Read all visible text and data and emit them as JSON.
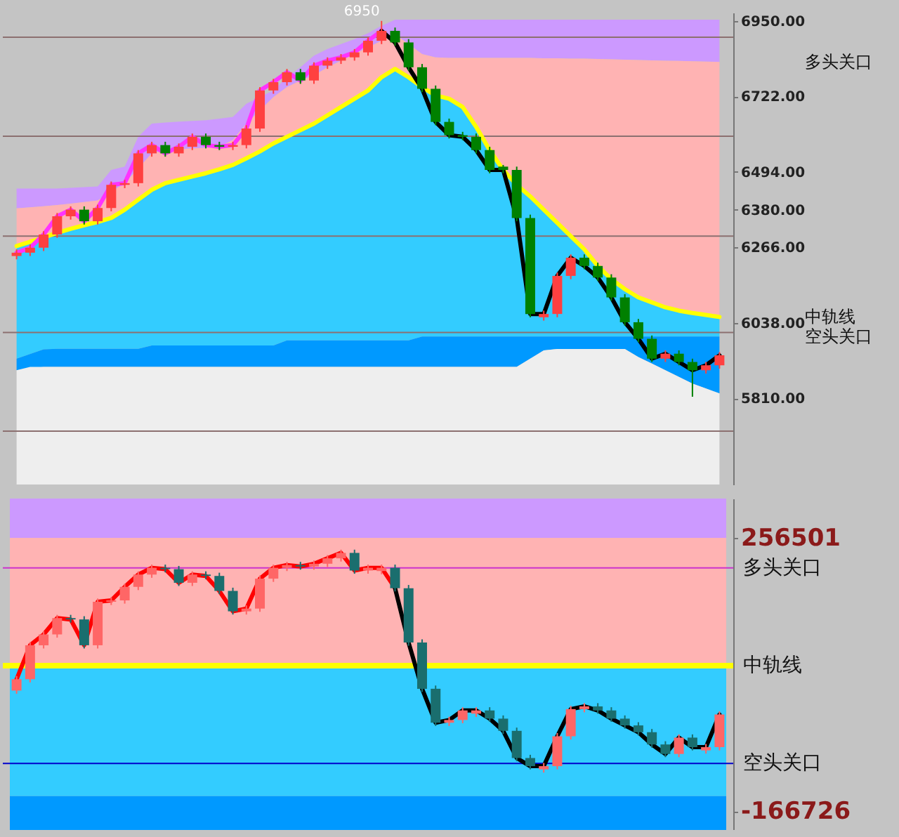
{
  "chart_data": [
    {
      "type": "candlestick",
      "categories": [
        null,
        null,
        null,
        null,
        null,
        null,
        null,
        null,
        null,
        null,
        null,
        null,
        null,
        null,
        null,
        null,
        null,
        null,
        null,
        null,
        null,
        null,
        null,
        null,
        null,
        null,
        null,
        null,
        null,
        null,
        null,
        null,
        null,
        null,
        null,
        null,
        null,
        null,
        null,
        null,
        null,
        null,
        null,
        null,
        null,
        null,
        null,
        null,
        null,
        null,
        null,
        null,
        null
      ],
      "ohlc": [
        [
          6240,
          6260,
          6230,
          6250
        ],
        [
          6250,
          6275,
          6240,
          6265
        ],
        [
          6265,
          6315,
          6255,
          6305
        ],
        [
          6305,
          6370,
          6295,
          6360
        ],
        [
          6360,
          6390,
          6350,
          6380
        ],
        [
          6380,
          6390,
          6335,
          6345
        ],
        [
          6345,
          6395,
          6335,
          6385
        ],
        [
          6385,
          6465,
          6375,
          6455
        ],
        [
          6455,
          6470,
          6445,
          6460
        ],
        [
          6460,
          6560,
          6450,
          6550
        ],
        [
          6550,
          6585,
          6540,
          6575
        ],
        [
          6575,
          6585,
          6540,
          6550
        ],
        [
          6550,
          6580,
          6540,
          6570
        ],
        [
          6570,
          6610,
          6560,
          6600
        ],
        [
          6600,
          6610,
          6565,
          6575
        ],
        [
          6575,
          6585,
          6560,
          6570
        ],
        [
          6570,
          6585,
          6560,
          6575
        ],
        [
          6575,
          6635,
          6565,
          6625
        ],
        [
          6625,
          6750,
          6615,
          6740
        ],
        [
          6740,
          6775,
          6730,
          6765
        ],
        [
          6765,
          6805,
          6755,
          6795
        ],
        [
          6795,
          6805,
          6760,
          6770
        ],
        [
          6770,
          6825,
          6760,
          6815
        ],
        [
          6815,
          6840,
          6805,
          6830
        ],
        [
          6830,
          6850,
          6820,
          6840
        ],
        [
          6840,
          6865,
          6830,
          6855
        ],
        [
          6855,
          6900,
          6845,
          6890
        ],
        [
          6890,
          6950,
          6880,
          6920
        ],
        [
          6920,
          6930,
          6875,
          6885
        ],
        [
          6885,
          6895,
          6800,
          6810
        ],
        [
          6810,
          6820,
          6735,
          6745
        ],
        [
          6745,
          6755,
          6635,
          6645
        ],
        [
          6645,
          6655,
          6595,
          6605
        ],
        [
          6605,
          6615,
          6590,
          6600
        ],
        [
          6600,
          6610,
          6550,
          6560
        ],
        [
          6560,
          6570,
          6490,
          6500
        ],
        [
          6510,
          6515,
          6490,
          6500
        ],
        [
          6500,
          6510,
          6345,
          6355
        ],
        [
          6355,
          6365,
          6055,
          6065
        ],
        [
          6055,
          6075,
          6045,
          6065
        ],
        [
          6065,
          6190,
          6055,
          6180
        ],
        [
          6180,
          6245,
          6170,
          6235
        ],
        [
          6235,
          6245,
          6200,
          6210
        ],
        [
          6210,
          6220,
          6165,
          6175
        ],
        [
          6175,
          6185,
          6105,
          6115
        ],
        [
          6115,
          6125,
          6030,
          6040
        ],
        [
          6040,
          6050,
          5980,
          5990
        ],
        [
          5990,
          6000,
          5920,
          5930
        ],
        [
          5930,
          5955,
          5920,
          5945
        ],
        [
          5945,
          5955,
          5910,
          5920
        ],
        [
          5920,
          5930,
          5815,
          5895
        ],
        [
          5895,
          5920,
          5885,
          5910
        ],
        [
          5910,
          5950,
          5900,
          5940
        ]
      ],
      "colors": [
        "#ff4040",
        "#ff4040",
        "#ff4040",
        "#ff4040",
        "#ff4040",
        "#008000",
        "#ff4040",
        "#ff4040",
        "#ff4040",
        "#ff4040",
        "#ff4040",
        "#008000",
        "#ff4040",
        "#ff4040",
        "#008000",
        "#008000",
        "#ff4040",
        "#ff4040",
        "#ff4040",
        "#ff4040",
        "#ff4040",
        "#008000",
        "#ff4040",
        "#ff4040",
        "#ff4040",
        "#ff4040",
        "#ff4040",
        "#ff4040",
        "#008000",
        "#008000",
        "#008000",
        "#008000",
        "#008000",
        "#008000",
        "#008000",
        "#008000",
        "#008000",
        "#008000",
        "#008000",
        "#ff4040",
        "#ff4040",
        "#ff4040",
        "#008000",
        "#008000",
        "#008000",
        "#008000",
        "#008000",
        "#008000",
        "#ff4040",
        "#008000",
        "#008000",
        "#ff4040",
        "#ff4040"
      ],
      "value_labels": [
        null,
        null,
        null,
        null,
        null,
        null,
        null,
        null,
        null,
        null,
        null,
        null,
        null,
        null,
        null,
        null,
        null,
        null,
        null,
        null,
        null,
        null,
        null,
        null,
        null,
        null,
        null,
        "6950",
        null,
        null,
        null,
        null,
        null,
        null,
        null,
        null,
        null,
        null,
        null,
        null,
        null,
        null,
        null,
        null,
        null,
        null,
        null,
        null,
        null,
        null,
        null,
        null,
        null
      ],
      "series": [
        {
          "type": "area",
          "color": "#cc99ff",
          "values": [
            6444,
            6444,
            6444,
            6444,
            6446,
            6448,
            6450,
            6500,
            6510,
            6600,
            6640,
            6643,
            6646,
            6648,
            6650,
            6655,
            6660,
            6700,
            null,
            6740,
            6780,
            6810,
            6845,
            6865,
            6880,
            6895,
            6913,
            6935,
            6954,
            6954,
            6954,
            6954,
            6954,
            6954,
            6954,
            6954,
            6954,
            6954,
            6954,
            6954,
            6954,
            6954,
            6954,
            6954,
            6954,
            6954,
            6954,
            6954,
            6954,
            6954,
            6954,
            6954,
            6954
          ]
        },
        {
          "type": "area",
          "name": "多头关口",
          "color": "#ffb3b3",
          "values": [
            6384,
            6387,
            6390,
            6394,
            6398,
            6403,
            6408,
            null,
            6460,
            null,
            6550,
            6560,
            6562,
            6565,
            6567,
            6570,
            6590,
            6640,
            null,
            6720,
            6750,
            6770,
            6785,
            6810,
            6830,
            6850,
            6870,
            6890,
            6910,
            null,
            6850,
            6840,
            6838,
            6838,
            6838,
            6838,
            6838,
            6838,
            6838,
            6837,
            6837,
            6836,
            6836,
            6835,
            6834,
            6833,
            6832,
            6831,
            6830,
            6829,
            6828,
            6827,
            6826
          ]
        },
        {
          "type": "area",
          "color": "#33ccff",
          "values": [
            6270,
            6283,
            6296,
            6310,
            6322,
            6333,
            6343,
            6355,
            6380,
            6410,
            6440,
            6460,
            6470,
            6480,
            6490,
            6502,
            6515,
            6535,
            6556,
            6580,
            6600,
            6620,
            6640,
            6665,
            6690,
            6715,
            6740,
            6780,
            6805,
            6780,
            6750,
            null,
            6715,
            6690,
            6630,
            6560,
            6500,
            null,
            6420,
            6380,
            6340,
            6300,
            6260,
            6210,
            6170,
            6140,
            6115,
            6100,
            6085,
            6075,
            6068,
            6062,
            6056
          ]
        },
        {
          "type": "area",
          "name": "空头关口",
          "color": "#0099ff",
          "values": [
            5930,
            null,
            5958,
            5960,
            5960,
            5960,
            5960,
            5960,
            5960,
            5960,
            5970,
            5970,
            5970,
            5970,
            5970,
            5970,
            5970,
            5970,
            5970,
            5970,
            5985,
            5985,
            5985,
            5985,
            5985,
            5985,
            5985,
            5985,
            5985,
            5985,
            5997,
            5997,
            5997,
            5997,
            5997,
            5997,
            5997,
            5997,
            5997,
            5997,
            5997,
            5997,
            5997,
            5997,
            5997,
            5997,
            5997,
            5997,
            5997,
            5997,
            5997,
            5997,
            5997
          ]
        },
        {
          "type": "area",
          "color": "#eeeeee",
          "values": [
            5895,
            5905,
            5905,
            5905,
            5905,
            5905,
            5905,
            5905,
            5905,
            5905,
            5905,
            5905,
            5905,
            5905,
            5905,
            5905,
            5905,
            5905,
            5905,
            5905,
            5905,
            5905,
            5905,
            5905,
            5905,
            5905,
            5905,
            5905,
            5905,
            5905,
            5905,
            5905,
            5905,
            5905,
            5905,
            5905,
            5905,
            5905,
            5930,
            5955,
            5959,
            5959,
            5959,
            5959,
            5959,
            5959,
            5935,
            5915,
            5895,
            5875,
            5855,
            5840,
            5825
          ]
        },
        {
          "type": "line",
          "name": "中轨线",
          "color": "#ffff00",
          "values": [
            6270,
            6283,
            6296,
            6310,
            6322,
            6333,
            6343,
            6355,
            6380,
            6410,
            6440,
            6460,
            6470,
            6480,
            6490,
            6502,
            6515,
            6535,
            6556,
            6580,
            6600,
            6620,
            6640,
            6665,
            6690,
            6715,
            6740,
            6780,
            6805,
            6780,
            6750,
            6725,
            6715,
            6690,
            6630,
            6560,
            6500,
            6455,
            6420,
            6380,
            6340,
            6300,
            6260,
            6210,
            6170,
            6140,
            6115,
            6100,
            6085,
            6075,
            6068,
            6062,
            6056
          ]
        },
        {
          "type": "line",
          "color": "#ff33ff",
          "values": [
            6250,
            6265,
            6305,
            6360,
            6380,
            6345,
            6385,
            6455,
            6460,
            6550,
            6575,
            6550,
            6570,
            6600,
            6575,
            6570,
            6575,
            6625,
            6740,
            6765,
            6795,
            6770,
            6815,
            6830,
            6840,
            6855,
            6890,
            6920,
            null,
            null,
            null,
            null,
            null,
            null,
            null,
            null,
            null,
            null,
            null,
            null,
            null,
            null,
            null,
            null,
            null,
            null,
            null,
            null,
            null,
            null,
            null,
            null,
            null
          ]
        },
        {
          "type": "line",
          "color": "#000000",
          "values": [
            null,
            null,
            null,
            null,
            null,
            null,
            null,
            null,
            null,
            null,
            null,
            null,
            null,
            null,
            null,
            null,
            null,
            null,
            null,
            null,
            null,
            null,
            null,
            null,
            null,
            null,
            null,
            6920,
            6885,
            6810,
            6745,
            6645,
            6605,
            6600,
            6560,
            6500,
            6500,
            6355,
            6065,
            6065,
            6180,
            6235,
            6210,
            6175,
            6115,
            6040,
            5990,
            5930,
            5945,
            5920,
            5895,
            5910,
            5940
          ]
        }
      ],
      "ylim": [
        5550,
        6975
      ],
      "yticks": [
        {
          "value": 6950,
          "label": "6950.00"
        },
        {
          "value": 6722,
          "label": "6722.00"
        },
        {
          "value": 6494,
          "label": "6494.00"
        },
        {
          "value": 6380,
          "label": "6380.00"
        },
        {
          "value": 6266,
          "label": "6266.00"
        },
        {
          "value": 6038,
          "label": "6038.00"
        },
        {
          "value": 5810,
          "label": "5810.00"
        }
      ],
      "tick_labels": "y",
      "ref_lines": [
        {
          "axis": "y",
          "value": 6901,
          "color": "#8c7070"
        },
        {
          "axis": "y",
          "value": 6602,
          "color": "#8c7070"
        },
        {
          "axis": "y",
          "value": 6300,
          "color": "#8c7070"
        },
        {
          "axis": "y",
          "value": 6009,
          "color": "#8c7070"
        },
        {
          "axis": "y",
          "value": 5711,
          "color": "#8c7070"
        }
      ]
    },
    {
      "type": "candlestick",
      "categories": [
        null,
        null,
        null,
        null,
        null,
        null,
        null,
        null,
        null,
        null,
        null,
        null,
        null,
        null,
        null,
        null,
        null,
        null,
        null,
        null,
        null,
        null,
        null,
        null,
        null,
        null,
        null,
        null,
        null,
        null,
        null,
        null,
        null,
        null,
        null,
        null,
        null,
        null,
        null,
        null,
        null,
        null,
        null,
        null,
        null,
        null,
        null,
        null,
        null,
        null,
        null,
        null,
        null
      ],
      "ohlc": [
        [
          20000,
          42600,
          15000,
          37600
        ],
        [
          37600,
          95200,
          32600,
          90200
        ],
        [
          90200,
          112000,
          85200,
          107000
        ],
        [
          107000,
          137300,
          102000,
          132300
        ],
        [
          132300,
          137300,
          125200,
          130200
        ],
        [
          130200,
          135200,
          85200,
          90200
        ],
        [
          90200,
          162600,
          85200,
          157600
        ],
        [
          157600,
          164700,
          152600,
          159700
        ],
        [
          159700,
          185700,
          154700,
          180700
        ],
        [
          180700,
          204700,
          175700,
          199700
        ],
        [
          199700,
          215200,
          194700,
          210200
        ],
        [
          210200,
          215200,
          203100,
          208100
        ],
        [
          208100,
          213100,
          182000,
          187000
        ],
        [
          187000,
          204700,
          182000,
          199700
        ],
        [
          199700,
          204700,
          192600,
          197600
        ],
        [
          197600,
          202600,
          169400,
          174400
        ],
        [
          174400,
          179400,
          137800,
          142800
        ],
        [
          142800,
          152000,
          137800,
          147000
        ],
        [
          147000,
          198400,
          142000,
          193400
        ],
        [
          193400,
          215200,
          188400,
          210200
        ],
        [
          210200,
          219400,
          205200,
          214400
        ],
        [
          214400,
          219400,
          207300,
          212300
        ],
        [
          212300,
          221500,
          207300,
          216500
        ],
        [
          216500,
          229900,
          211500,
          224900
        ],
        [
          224900,
          238300,
          219900,
          233300
        ],
        [
          233300,
          238300,
          201000,
          206000
        ],
        [
          206000,
          215200,
          201000,
          210200
        ],
        [
          205200,
          215200,
          200200,
          210200
        ],
        [
          210200,
          215200,
          173600,
          178600
        ],
        [
          178600,
          183600,
          89400,
          94400
        ],
        [
          94400,
          99400,
          17800,
          22800
        ],
        [
          22800,
          27800,
          -34800,
          -29800
        ],
        [
          -29800,
          -20600,
          -34800,
          -25600
        ],
        [
          -25600,
          -5800,
          -30600,
          -10800
        ],
        [
          -15800,
          -5800,
          -20800,
          -10800
        ],
        [
          -10800,
          -5800,
          -28500,
          -23500
        ],
        [
          -23500,
          -18500,
          -47400,
          -42400
        ],
        [
          -42400,
          -37400,
          -89500,
          -84500
        ],
        [
          -84500,
          -79500,
          -102100,
          -97100
        ],
        [
          -102100,
          -92100,
          -107100,
          -97100
        ],
        [
          -97100,
          -45800,
          -102100,
          -50800
        ],
        [
          -50800,
          -3700,
          -55800,
          -8700
        ],
        [
          -8700,
          500,
          -13700,
          -4500
        ],
        [
          -4500,
          500,
          -15800,
          -10800
        ],
        [
          -10800,
          -5800,
          -28500,
          -23500
        ],
        [
          -23500,
          -18500,
          -39000,
          -34000
        ],
        [
          -34000,
          -29000,
          -49500,
          -44500
        ],
        [
          -44500,
          -39500,
          -68500,
          -63500
        ],
        [
          -63500,
          -58500,
          -83200,
          -78200
        ],
        [
          -78200,
          -47900,
          -83200,
          -52900
        ],
        [
          -52900,
          -47900,
          -72700,
          -67700
        ],
        [
          -72700,
          -62700,
          -77700,
          -67700
        ],
        [
          -67700,
          -12100,
          -72700,
          -17100
        ]
      ],
      "colors": [
        "#ff6666",
        "#ff6666",
        "#ff6666",
        "#ff6666",
        "#1a6e6e",
        "#1a6e6e",
        "#ff6666",
        "#ff6666",
        "#ff6666",
        "#ff6666",
        "#ff6666",
        "#1a6e6e",
        "#1a6e6e",
        "#ff6666",
        "#1a6e6e",
        "#1a6e6e",
        "#1a6e6e",
        "#ff6666",
        "#ff6666",
        "#ff6666",
        "#ff6666",
        "#1a6e6e",
        "#ff6666",
        "#ff6666",
        "#ff6666",
        "#1a6e6e",
        "#ff6666",
        "#ff6666",
        "#1a6e6e",
        "#1a6e6e",
        "#1a6e6e",
        "#1a6e6e",
        "#ff6666",
        "#ff6666",
        "#ff6666",
        "#1a6e6e",
        "#1a6e6e",
        "#1a6e6e",
        "#1a6e6e",
        "#ff6666",
        "#ff6666",
        "#ff6666",
        "#ff6666",
        "#1a6e6e",
        "#1a6e6e",
        "#1a6e6e",
        "#1a6e6e",
        "#1a6e6e",
        "#1a6e6e",
        "#ff6666",
        "#1a6e6e",
        "#ff6666",
        "#ff6666"
      ],
      "series": [
        {
          "type": "line",
          "color": "#ff0000",
          "values": [
            37600,
            90200,
            107000,
            132300,
            130200,
            90200,
            157600,
            159700,
            180700,
            199700,
            210200,
            208100,
            187000,
            199700,
            197600,
            174400,
            142800,
            147000,
            193400,
            210200,
            214400,
            212300,
            216500,
            224900,
            233300,
            206000,
            210200,
            210200,
            178600,
            null,
            null,
            null,
            null,
            null,
            null,
            null,
            null,
            null,
            null,
            null,
            null,
            null,
            null,
            null,
            null,
            null,
            null,
            null,
            null,
            null,
            null,
            null,
            null
          ]
        },
        {
          "type": "line",
          "color": "#000000",
          "values": [
            null,
            null,
            null,
            null,
            null,
            null,
            null,
            null,
            null,
            null,
            null,
            null,
            null,
            null,
            null,
            null,
            null,
            null,
            null,
            null,
            null,
            null,
            null,
            null,
            null,
            null,
            null,
            null,
            178600,
            94400,
            22800,
            -29800,
            -25600,
            -10800,
            -10800,
            -23500,
            -42400,
            -84500,
            -97100,
            -97100,
            -50800,
            -8700,
            -4500,
            -10800,
            -23500,
            -34000,
            -44500,
            -63500,
            -78200,
            -52900,
            -67700,
            -67700,
            -17100
          ]
        }
      ],
      "ylim": [
        -196000,
        317500
      ],
      "yticks": [
        256501,
        -166726
      ],
      "tick_labels": "y",
      "bands": [
        {
          "axis": "y",
          "from": 256501,
          "to": 317500,
          "color": "#cc99ff"
        },
        {
          "axis": "y",
          "from": 58631,
          "to": 256501,
          "color": "#ffb3b3"
        },
        {
          "axis": "y",
          "from": -143449,
          "to": 58631,
          "color": "#33ccff"
        },
        {
          "axis": "y",
          "from": -196000,
          "to": -143449,
          "color": "#0099ff"
        }
      ],
      "ref_lines": [
        {
          "axis": "y",
          "value": 210191,
          "color": "#cc33cc",
          "label": "多头关口"
        },
        {
          "axis": "y",
          "value": 58631,
          "color": "#ffff00",
          "label": "中轨线"
        },
        {
          "axis": "y",
          "value": -92929,
          "color": "#0000cc",
          "label": "空头关口"
        }
      ]
    }
  ]
}
